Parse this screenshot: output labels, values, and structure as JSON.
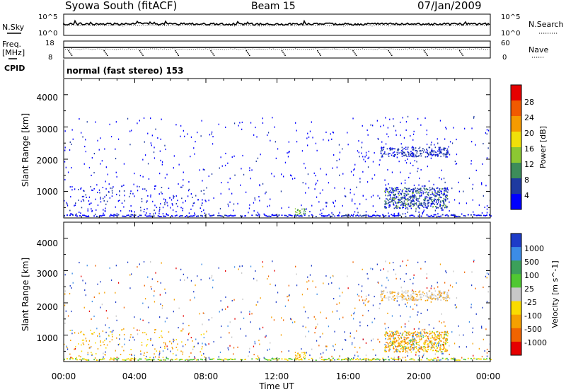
{
  "header": {
    "station": "Syowa South (fitACF)",
    "beam": "Beam 15",
    "date": "07/Jan/2009"
  },
  "noise_panel": {
    "left_label": "N.Sky",
    "right_label": "N.Search",
    "left_ticks": [
      "10^5",
      "10^0"
    ],
    "right_ticks": [
      "10^5",
      "10^0"
    ]
  },
  "freq_panel": {
    "left_label_1": "Freq.",
    "left_label_2": "[MHz]",
    "right_label": "Nave",
    "left_ticks": [
      "18",
      "8"
    ],
    "right_ticks": [
      "60",
      "0"
    ]
  },
  "cpid_panel": {
    "label": "CPID",
    "text": "normal (fast stereo) 153"
  },
  "chart_data": [
    {
      "type": "heatmap",
      "title": "Power",
      "ylabel": "Slant Range [km]",
      "xlabel": "",
      "ylim": [
        180,
        4500
      ],
      "yticks": [
        "1000",
        "2000",
        "3000",
        "4000"
      ],
      "xlim_hours": [
        0,
        24
      ],
      "xticks": [],
      "colorbar": {
        "label": "Power [dB]",
        "ticks": [
          "4",
          "8",
          "12",
          "16",
          "20",
          "24",
          "28"
        ],
        "colors": [
          "#0000ff",
          "#1e3aa0",
          "#3d8c5a",
          "#8cc832",
          "#f0e00a",
          "#f59b00",
          "#f05a00",
          "#e60000"
        ]
      }
    },
    {
      "type": "heatmap",
      "title": "Velocity",
      "ylabel": "Slant Range [km]",
      "xlabel": "Time UT",
      "ylim": [
        180,
        4500
      ],
      "yticks": [
        "1000",
        "2000",
        "3000",
        "4000"
      ],
      "xlim_hours": [
        0,
        24
      ],
      "xticks": [
        "00:00",
        "04:00",
        "08:00",
        "12:00",
        "16:00",
        "20:00",
        "00:00"
      ],
      "colorbar": {
        "label": "Velocity [m s^-1]",
        "ticks": [
          "1000",
          "500",
          "100",
          "25",
          "-25",
          "-100",
          "-500",
          "-1000"
        ],
        "colors": [
          "#1e3cc8",
          "#3c8ce6",
          "#3ca05a",
          "#50c832",
          "#c8c8c8",
          "#fadc00",
          "#f5a000",
          "#f06400",
          "#e60000"
        ]
      }
    }
  ]
}
